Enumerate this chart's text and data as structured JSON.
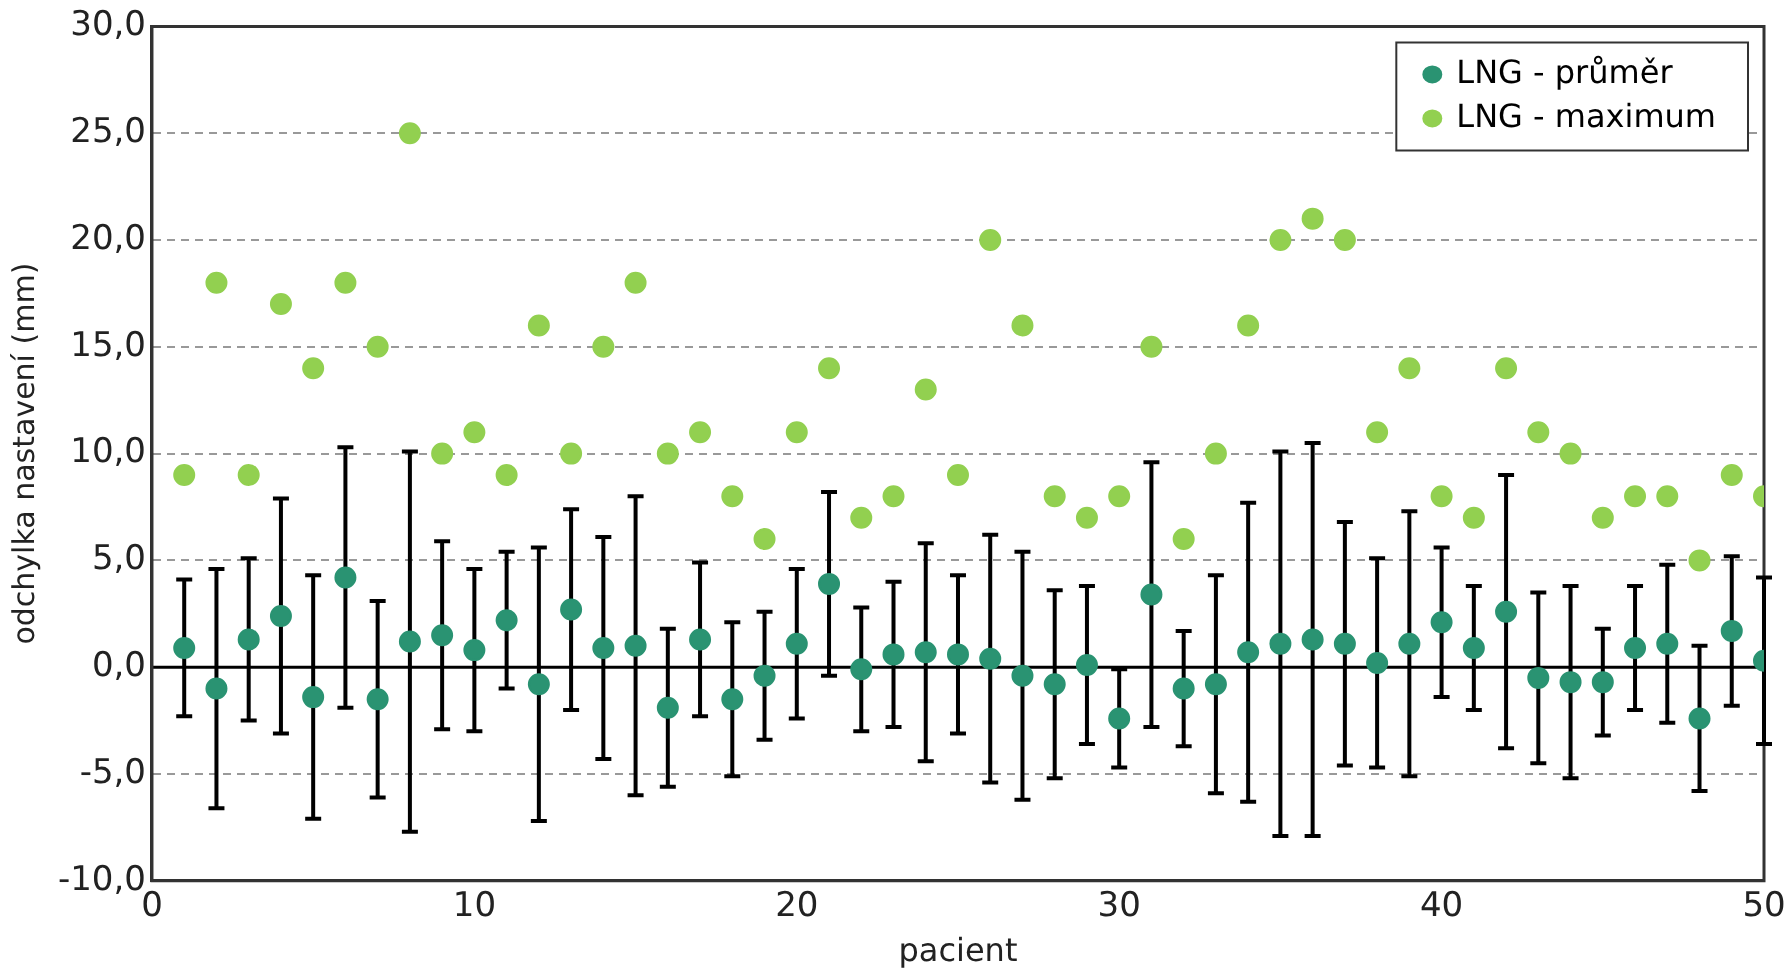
{
  "chart_data": {
    "type": "scatter",
    "xlabel": "pacient",
    "ylabel": "odchylka nastavení (mm)",
    "xlim": [
      0,
      50
    ],
    "xticks": [
      0,
      10,
      20,
      30,
      40,
      50
    ],
    "ylim": [
      -10,
      30
    ],
    "yticks": [
      {
        "value": -10,
        "label": "-10,0"
      },
      {
        "value": -5,
        "label": "-5,0"
      },
      {
        "value": 0,
        "label": "0,0"
      },
      {
        "value": 5,
        "label": "5,0"
      },
      {
        "value": 10,
        "label": "10,0"
      },
      {
        "value": 15,
        "label": "15,0"
      },
      {
        "value": 20,
        "label": "20,0"
      },
      {
        "value": 25,
        "label": "25,0"
      },
      {
        "value": 30,
        "label": "30,0"
      }
    ],
    "grid": "y",
    "legend": "top right",
    "marker": "circle",
    "x": [
      1,
      2,
      3,
      4,
      5,
      6,
      7,
      8,
      9,
      10,
      11,
      12,
      13,
      14,
      15,
      16,
      17,
      18,
      19,
      20,
      21,
      22,
      23,
      24,
      25,
      26,
      27,
      28,
      29,
      30,
      31,
      32,
      33,
      34,
      35,
      36,
      37,
      38,
      39,
      40,
      41,
      42,
      43,
      44,
      45,
      46,
      47,
      48,
      49,
      50
    ],
    "series": [
      {
        "name": "LNG - průměr",
        "color": "#2a9372",
        "values": [
          0.9,
          -1.0,
          1.3,
          2.4,
          -1.4,
          4.2,
          -1.5,
          1.2,
          1.5,
          0.8,
          2.2,
          -0.8,
          2.7,
          0.9,
          1.0,
          -1.9,
          1.3,
          -1.5,
          -0.4,
          1.1,
          3.9,
          -0.1,
          0.6,
          0.7,
          0.6,
          0.4,
          -0.4,
          -0.8,
          0.1,
          -2.4,
          3.4,
          -1.0,
          -0.8,
          0.7,
          1.1,
          1.3,
          1.1,
          0.2,
          1.1,
          2.1,
          0.9,
          2.6,
          -0.5,
          -0.7,
          -0.7,
          0.9,
          1.1,
          -2.4,
          1.7,
          0.3
        ],
        "errors": [
          3.2,
          5.6,
          3.8,
          5.5,
          5.7,
          6.1,
          4.6,
          8.9,
          4.4,
          3.8,
          3.2,
          6.4,
          4.7,
          5.2,
          7.0,
          3.7,
          3.6,
          3.6,
          3.0,
          3.5,
          4.3,
          2.9,
          3.4,
          5.1,
          3.7,
          5.8,
          5.8,
          4.4,
          3.7,
          2.3,
          6.2,
          2.7,
          5.1,
          7.0,
          9.0,
          9.2,
          5.7,
          4.9,
          6.2,
          3.5,
          2.9,
          6.4,
          4.0,
          4.5,
          2.5,
          2.9,
          3.7,
          3.4,
          3.5,
          3.9
        ]
      },
      {
        "name": "LNG - maximum",
        "color": "#92d050",
        "values": [
          9,
          18,
          9,
          17,
          14,
          18,
          15,
          25,
          10,
          11,
          9,
          16,
          10,
          15,
          18,
          10,
          11,
          8,
          6,
          11,
          14,
          7,
          8,
          13,
          9,
          20,
          16,
          8,
          7,
          8,
          15,
          6,
          10,
          16,
          20,
          21,
          20,
          11,
          14,
          8,
          7,
          14,
          11,
          10,
          7,
          8,
          8,
          5,
          9,
          8
        ]
      }
    ]
  }
}
